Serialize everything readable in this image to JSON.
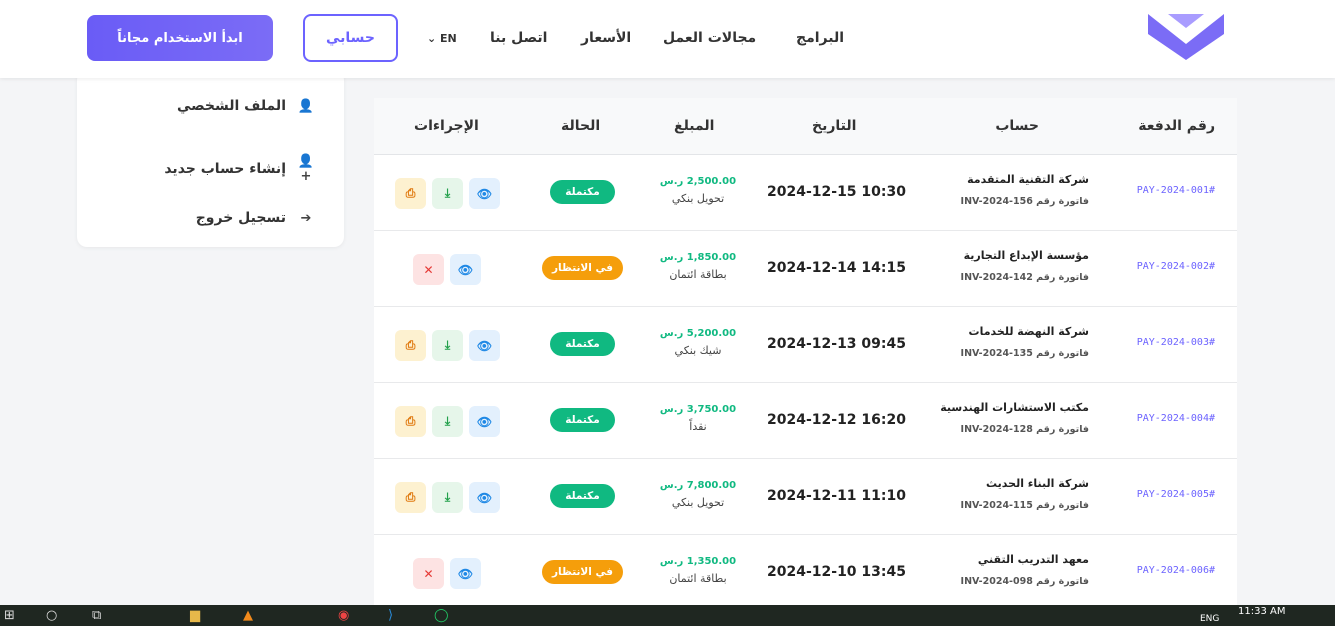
{
  "header": {
    "nav": [
      "البرامج",
      "مجالات العمل",
      "الأسعار",
      "اتصل بنا"
    ],
    "lang": "EN",
    "account_button": "حسابي",
    "cta": "ابدأ الاستخدام مجاناً",
    "brand_color": "#6c63ff"
  },
  "sidebar": {
    "items": [
      {
        "label": "الملف الشخصي",
        "icon": "user-icon"
      },
      {
        "label": "إنشاء حساب جديد",
        "icon": "user-plus-icon"
      },
      {
        "label": "تسجيل خروج",
        "icon": "sign-out-icon"
      }
    ]
  },
  "table": {
    "headers": [
      "رقم الدفعة",
      "حساب",
      "التاريخ",
      "المبلغ",
      "الحالة",
      "الإجراءات"
    ],
    "rows": [
      {
        "id": "#PAY-2024-001",
        "company": "شركة التقنية المتقدمة",
        "invoice": "فاتورة رقم INV-2024-156",
        "date": "2024-12-15 10:30",
        "amount": "2,500.00 ر.س",
        "method": "تحويل بنكي",
        "status": "مكتملة",
        "state": "done"
      },
      {
        "id": "#PAY-2024-002",
        "company": "مؤسسة الإبداع التجارية",
        "invoice": "فاتورة رقم INV-2024-142",
        "date": "2024-12-14 14:15",
        "amount": "1,850.00 ر.س",
        "method": "بطاقة ائتمان",
        "status": "في الانتظار",
        "state": "pending"
      },
      {
        "id": "#PAY-2024-003",
        "company": "شركة النهضة للخدمات",
        "invoice": "فاتورة رقم INV-2024-135",
        "date": "2024-12-13 09:45",
        "amount": "5,200.00 ر.س",
        "method": "شيك بنكي",
        "status": "مكتملة",
        "state": "done"
      },
      {
        "id": "#PAY-2024-004",
        "company": "مكتب الاستشارات الهندسية",
        "invoice": "فاتورة رقم INV-2024-128",
        "date": "2024-12-12 16:20",
        "amount": "3,750.00 ر.س",
        "method": "نقداً",
        "status": "مكتملة",
        "state": "done"
      },
      {
        "id": "#PAY-2024-005",
        "company": "شركة البناء الحديث",
        "invoice": "فاتورة رقم INV-2024-115",
        "date": "2024-12-11 11:10",
        "amount": "7,800.00 ر.س",
        "method": "تحويل بنكي",
        "status": "مكتملة",
        "state": "done"
      },
      {
        "id": "#PAY-2024-006",
        "company": "معهد التدريب التقني",
        "invoice": "فاتورة رقم INV-2024-098",
        "date": "2024-12-10 13:45",
        "amount": "1,350.00 ر.س",
        "method": "بطاقة ائتمان",
        "status": "في الانتظار",
        "state": "pending"
      }
    ],
    "status_colors": {
      "done": "#10b981",
      "pending": "#f59e0b"
    }
  },
  "taskbar": {
    "time": "11:33 AM",
    "lang": "ENG"
  }
}
